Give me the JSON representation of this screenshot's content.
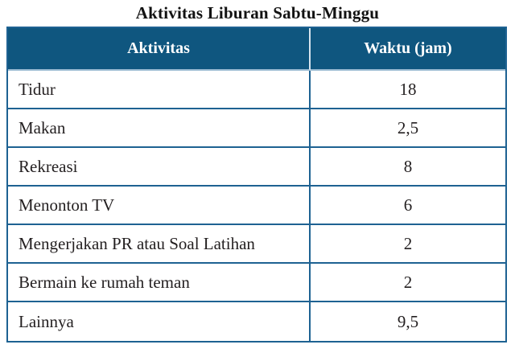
{
  "title": "Aktivitas Liburan Sabtu-Minggu",
  "table": {
    "headers": [
      "Aktivitas",
      "Waktu (jam)"
    ],
    "rows": [
      {
        "aktivitas": "Tidur",
        "waktu": "18"
      },
      {
        "aktivitas": "Makan",
        "waktu": "2,5"
      },
      {
        "aktivitas": "Rekreasi",
        "waktu": "8"
      },
      {
        "aktivitas": "Menonton TV",
        "waktu": "6"
      },
      {
        "aktivitas": "Mengerjakan PR atau Soal Latihan",
        "waktu": "2"
      },
      {
        "aktivitas": "Bermain ke rumah teman",
        "waktu": "2"
      },
      {
        "aktivitas": "Lainnya",
        "waktu": "9,5"
      }
    ]
  },
  "colors": {
    "header_bg": "#0F567F",
    "header_text": "#FFFFFF",
    "border": "#1E6292",
    "header_divider": "#D6E3EE",
    "body_text": "#231F20"
  },
  "chart_data": {
    "type": "table",
    "title": "Aktivitas Liburan Sabtu-Minggu",
    "columns": [
      "Aktivitas",
      "Waktu (jam)"
    ],
    "rows": [
      [
        "Tidur",
        "18"
      ],
      [
        "Makan",
        "2,5"
      ],
      [
        "Rekreasi",
        "8"
      ],
      [
        "Menonton TV",
        "6"
      ],
      [
        "Mengerjakan PR atau Soal Latihan",
        "2"
      ],
      [
        "Bermain ke rumah teman",
        "2"
      ],
      [
        "Lainnya",
        "9,5"
      ]
    ],
    "values_numeric": [
      18,
      2.5,
      8,
      6,
      2,
      2,
      9.5
    ]
  }
}
